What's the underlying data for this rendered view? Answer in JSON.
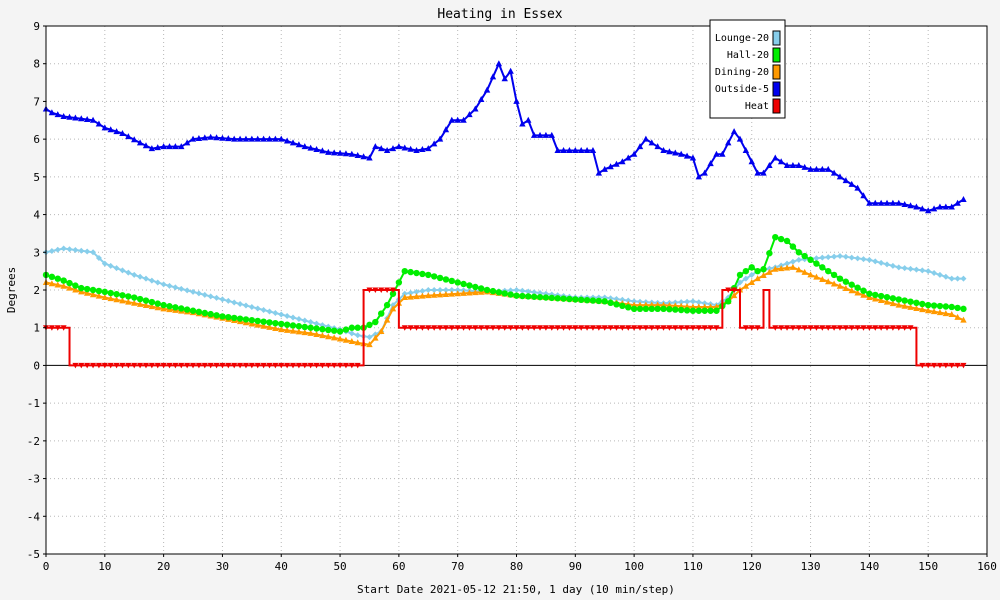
{
  "chart_data": {
    "type": "line",
    "title": "Heating in Essex",
    "xlabel": "Start Date 2021-05-12 21:50, 1 day (10 min/step)",
    "ylabel": "Degrees",
    "xlim": [
      0,
      160
    ],
    "ylim": [
      -5,
      9
    ],
    "xticks": [
      0,
      10,
      20,
      30,
      40,
      50,
      60,
      70,
      80,
      90,
      100,
      110,
      120,
      130,
      140,
      150,
      160
    ],
    "yticks": [
      -5,
      -4,
      -3,
      -2,
      -1,
      0,
      1,
      2,
      3,
      4,
      5,
      6,
      7,
      8,
      9
    ],
    "grid": true,
    "legend_position": "top-right",
    "series": [
      {
        "name": "Lounge-20",
        "color": "#87ceeb",
        "marker": "diamond",
        "points": [
          [
            0,
            3.0
          ],
          [
            3,
            3.1
          ],
          [
            8,
            3.0
          ],
          [
            10,
            2.7
          ],
          [
            15,
            2.4
          ],
          [
            20,
            2.15
          ],
          [
            25,
            1.95
          ],
          [
            30,
            1.75
          ],
          [
            35,
            1.55
          ],
          [
            40,
            1.35
          ],
          [
            45,
            1.15
          ],
          [
            50,
            0.95
          ],
          [
            53,
            0.8
          ],
          [
            55,
            0.75
          ],
          [
            57,
            0.9
          ],
          [
            59,
            1.6
          ],
          [
            61,
            1.9
          ],
          [
            65,
            2.0
          ],
          [
            70,
            2.0
          ],
          [
            75,
            1.95
          ],
          [
            80,
            2.0
          ],
          [
            85,
            1.9
          ],
          [
            90,
            1.8
          ],
          [
            95,
            1.8
          ],
          [
            100,
            1.7
          ],
          [
            105,
            1.65
          ],
          [
            110,
            1.7
          ],
          [
            114,
            1.6
          ],
          [
            116,
            1.8
          ],
          [
            118,
            2.2
          ],
          [
            121,
            2.5
          ],
          [
            124,
            2.6
          ],
          [
            128,
            2.8
          ],
          [
            135,
            2.9
          ],
          [
            140,
            2.8
          ],
          [
            145,
            2.6
          ],
          [
            150,
            2.5
          ],
          [
            154,
            2.3
          ],
          [
            156,
            2.3
          ]
        ]
      },
      {
        "name": "Hall-20",
        "color": "#00ee00",
        "marker": "circle",
        "points": [
          [
            0,
            2.4
          ],
          [
            3,
            2.25
          ],
          [
            6,
            2.05
          ],
          [
            10,
            1.95
          ],
          [
            15,
            1.8
          ],
          [
            20,
            1.6
          ],
          [
            25,
            1.45
          ],
          [
            30,
            1.3
          ],
          [
            35,
            1.2
          ],
          [
            40,
            1.1
          ],
          [
            45,
            1.0
          ],
          [
            50,
            0.9
          ],
          [
            52,
            1.0
          ],
          [
            54,
            1.0
          ],
          [
            56,
            1.15
          ],
          [
            58,
            1.6
          ],
          [
            60,
            2.2
          ],
          [
            61,
            2.5
          ],
          [
            65,
            2.4
          ],
          [
            70,
            2.2
          ],
          [
            75,
            2.0
          ],
          [
            80,
            1.85
          ],
          [
            85,
            1.8
          ],
          [
            90,
            1.75
          ],
          [
            95,
            1.7
          ],
          [
            100,
            1.5
          ],
          [
            105,
            1.5
          ],
          [
            110,
            1.45
          ],
          [
            114,
            1.45
          ],
          [
            116,
            1.7
          ],
          [
            118,
            2.4
          ],
          [
            120,
            2.6
          ],
          [
            121,
            2.5
          ],
          [
            122,
            2.55
          ],
          [
            124,
            3.4
          ],
          [
            126,
            3.3
          ],
          [
            128,
            3.0
          ],
          [
            130,
            2.8
          ],
          [
            135,
            2.3
          ],
          [
            140,
            1.9
          ],
          [
            145,
            1.75
          ],
          [
            150,
            1.6
          ],
          [
            154,
            1.55
          ],
          [
            156,
            1.5
          ]
        ]
      },
      {
        "name": "Dining-20",
        "color": "#ff9900",
        "marker": "triangle",
        "points": [
          [
            0,
            2.2
          ],
          [
            3,
            2.1
          ],
          [
            6,
            1.95
          ],
          [
            10,
            1.8
          ],
          [
            15,
            1.65
          ],
          [
            20,
            1.5
          ],
          [
            25,
            1.4
          ],
          [
            30,
            1.25
          ],
          [
            35,
            1.1
          ],
          [
            40,
            0.95
          ],
          [
            45,
            0.85
          ],
          [
            50,
            0.7
          ],
          [
            53,
            0.6
          ],
          [
            55,
            0.55
          ],
          [
            57,
            0.9
          ],
          [
            59,
            1.5
          ],
          [
            61,
            1.8
          ],
          [
            65,
            1.85
          ],
          [
            70,
            1.9
          ],
          [
            75,
            1.95
          ],
          [
            80,
            1.85
          ],
          [
            85,
            1.8
          ],
          [
            90,
            1.75
          ],
          [
            95,
            1.7
          ],
          [
            100,
            1.6
          ],
          [
            105,
            1.6
          ],
          [
            110,
            1.55
          ],
          [
            114,
            1.55
          ],
          [
            116,
            1.7
          ],
          [
            118,
            2.0
          ],
          [
            121,
            2.3
          ],
          [
            124,
            2.55
          ],
          [
            127,
            2.6
          ],
          [
            130,
            2.4
          ],
          [
            135,
            2.1
          ],
          [
            140,
            1.8
          ],
          [
            145,
            1.6
          ],
          [
            150,
            1.45
          ],
          [
            154,
            1.35
          ],
          [
            156,
            1.2
          ]
        ]
      },
      {
        "name": "Outside-5",
        "color": "#0000ee",
        "marker": "triangle",
        "points": [
          [
            0,
            6.8
          ],
          [
            1,
            6.7
          ],
          [
            3,
            6.6
          ],
          [
            8,
            6.5
          ],
          [
            10,
            6.3
          ],
          [
            13,
            6.15
          ],
          [
            16,
            5.9
          ],
          [
            18,
            5.75
          ],
          [
            20,
            5.8
          ],
          [
            23,
            5.8
          ],
          [
            25,
            6.0
          ],
          [
            28,
            6.05
          ],
          [
            32,
            6.0
          ],
          [
            35,
            6.0
          ],
          [
            40,
            6.0
          ],
          [
            44,
            5.8
          ],
          [
            48,
            5.65
          ],
          [
            52,
            5.6
          ],
          [
            55,
            5.5
          ],
          [
            56,
            5.8
          ],
          [
            58,
            5.7
          ],
          [
            60,
            5.8
          ],
          [
            63,
            5.7
          ],
          [
            65,
            5.75
          ],
          [
            67,
            6.0
          ],
          [
            69,
            6.5
          ],
          [
            71,
            6.5
          ],
          [
            73,
            6.8
          ],
          [
            75,
            7.3
          ],
          [
            77,
            8.0
          ],
          [
            78,
            7.6
          ],
          [
            79,
            7.8
          ],
          [
            80,
            7.0
          ],
          [
            81,
            6.4
          ],
          [
            82,
            6.5
          ],
          [
            83,
            6.1
          ],
          [
            86,
            6.1
          ],
          [
            87,
            5.7
          ],
          [
            90,
            5.7
          ],
          [
            93,
            5.7
          ],
          [
            94,
            5.1
          ],
          [
            95,
            5.2
          ],
          [
            98,
            5.4
          ],
          [
            100,
            5.6
          ],
          [
            101,
            5.8
          ],
          [
            102,
            6.0
          ],
          [
            103,
            5.9
          ],
          [
            105,
            5.7
          ],
          [
            108,
            5.6
          ],
          [
            110,
            5.5
          ],
          [
            111,
            5.0
          ],
          [
            112,
            5.1
          ],
          [
            114,
            5.6
          ],
          [
            115,
            5.6
          ],
          [
            117,
            6.2
          ],
          [
            118,
            6.0
          ],
          [
            119,
            5.7
          ],
          [
            121,
            5.1
          ],
          [
            122,
            5.1
          ],
          [
            124,
            5.5
          ],
          [
            126,
            5.3
          ],
          [
            128,
            5.3
          ],
          [
            130,
            5.2
          ],
          [
            133,
            5.2
          ],
          [
            135,
            5.0
          ],
          [
            138,
            4.7
          ],
          [
            140,
            4.3
          ],
          [
            142,
            4.3
          ],
          [
            145,
            4.3
          ],
          [
            148,
            4.2
          ],
          [
            150,
            4.1
          ],
          [
            152,
            4.2
          ],
          [
            154,
            4.2
          ],
          [
            155,
            4.3
          ],
          [
            156,
            4.4
          ]
        ]
      },
      {
        "name": "Heat",
        "color": "#ee0000",
        "marker": "triangle-down",
        "points": [
          [
            0,
            1
          ],
          [
            3,
            1
          ],
          [
            4,
            0
          ],
          [
            53,
            0
          ],
          [
            54,
            2
          ],
          [
            59,
            2
          ],
          [
            60,
            1
          ],
          [
            114,
            1
          ],
          [
            115,
            2
          ],
          [
            117,
            2
          ],
          [
            118,
            1
          ],
          [
            121,
            1
          ],
          [
            122,
            2
          ],
          [
            123,
            1
          ],
          [
            147,
            1
          ],
          [
            148,
            0
          ],
          [
            156,
            0
          ]
        ]
      }
    ]
  }
}
